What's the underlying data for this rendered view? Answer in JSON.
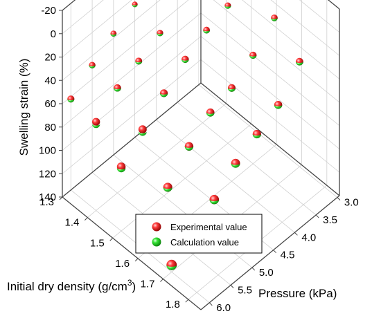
{
  "chart_data": {
    "type": "scatter",
    "dimensions": "3d",
    "axes": {
      "x": {
        "label": "Initial dry density (g/cm",
        "label_sup": "3",
        "label_close": ")",
        "ticks": [
          "1.3",
          "1.4",
          "1.5",
          "1.6",
          "1.7",
          "1.8"
        ],
        "range": [
          1.3,
          1.85
        ]
      },
      "y": {
        "label": "Pressure (kPa)",
        "ticks": [
          "3.0",
          "3.5",
          "4.0",
          "4.5",
          "5.0",
          "5.5",
          "6.0"
        ],
        "range": [
          2.95,
          6.2
        ]
      },
      "z": {
        "label": "Swelling strain (%)",
        "ticks": [
          "-20",
          "0",
          "20",
          "40",
          "60",
          "80",
          "100",
          "120",
          "140"
        ],
        "range": [
          -20,
          140
        ],
        "inverted": true
      }
    },
    "grid": true,
    "legend": {
      "position": "bottom-center",
      "entries": [
        {
          "label": "Experimental value",
          "color": "#ee1111"
        },
        {
          "label": "Calculation value",
          "color": "#22dd22"
        }
      ]
    },
    "series": [
      {
        "name": "Experimental value",
        "color": "#ee1111",
        "points": [
          [
            1.3,
            3.0,
            -2
          ],
          [
            1.3,
            3.5,
            6
          ],
          [
            1.3,
            4.0,
            18
          ],
          [
            1.3,
            4.5,
            26
          ],
          [
            1.3,
            5.0,
            36
          ],
          [
            1.3,
            5.5,
            48
          ],
          [
            1.3,
            6.0,
            62
          ],
          [
            1.4,
            3.0,
            16
          ],
          [
            1.4,
            3.5,
            19
          ],
          [
            1.4,
            4.5,
            33
          ],
          [
            1.4,
            5.0,
            42
          ],
          [
            1.4,
            5.5,
            50
          ],
          [
            1.4,
            6.0,
            64
          ],
          [
            1.5,
            3.0,
            13
          ],
          [
            1.5,
            3.5,
            22
          ],
          [
            1.5,
            4.0,
            28
          ],
          [
            1.5,
            4.5,
            38
          ],
          [
            1.5,
            5.0,
            52
          ],
          [
            1.5,
            5.5,
            68
          ],
          [
            1.5,
            6.0,
            85
          ],
          [
            1.6,
            3.0,
            30
          ],
          [
            1.6,
            3.5,
            47
          ],
          [
            1.6,
            4.0,
            60
          ],
          [
            1.6,
            4.5,
            66
          ],
          [
            1.6,
            5.0,
            80
          ],
          [
            1.6,
            5.5,
            100
          ],
          [
            1.6,
            6.0,
            114
          ],
          [
            1.7,
            3.0,
            50
          ],
          [
            1.7,
            3.5,
            72
          ],
          [
            1.7,
            4.0,
            82
          ],
          [
            1.7,
            4.5,
            92
          ],
          [
            1.7,
            5.0,
            108
          ],
          [
            1.7,
            5.5,
            122
          ],
          [
            1.7,
            6.0,
            134
          ]
        ]
      },
      {
        "name": "Calculation value",
        "color": "#22dd22",
        "points": [
          [
            1.3,
            3.0,
            -2
          ],
          [
            1.3,
            3.5,
            6
          ],
          [
            1.3,
            4.0,
            18
          ],
          [
            1.3,
            4.5,
            26
          ],
          [
            1.3,
            5.0,
            36
          ],
          [
            1.3,
            5.5,
            48
          ],
          [
            1.3,
            6.0,
            62
          ],
          [
            1.4,
            3.0,
            16
          ],
          [
            1.4,
            3.5,
            19
          ],
          [
            1.4,
            4.5,
            33
          ],
          [
            1.4,
            5.0,
            42
          ],
          [
            1.4,
            5.5,
            50
          ],
          [
            1.4,
            6.0,
            66
          ],
          [
            1.5,
            3.0,
            13
          ],
          [
            1.5,
            3.5,
            22
          ],
          [
            1.5,
            4.0,
            28
          ],
          [
            1.5,
            4.5,
            38
          ],
          [
            1.5,
            5.0,
            52
          ],
          [
            1.5,
            5.5,
            70
          ],
          [
            1.5,
            6.0,
            86
          ],
          [
            1.6,
            3.0,
            30
          ],
          [
            1.6,
            3.5,
            47
          ],
          [
            1.6,
            4.0,
            60
          ],
          [
            1.6,
            4.5,
            66
          ],
          [
            1.6,
            5.0,
            80
          ],
          [
            1.6,
            5.5,
            100
          ],
          [
            1.6,
            6.0,
            114
          ],
          [
            1.7,
            3.0,
            50
          ],
          [
            1.7,
            3.5,
            72
          ],
          [
            1.7,
            4.0,
            82
          ],
          [
            1.7,
            4.5,
            92
          ],
          [
            1.7,
            5.0,
            108
          ],
          [
            1.7,
            5.5,
            122
          ],
          [
            1.7,
            6.0,
            134
          ]
        ]
      }
    ]
  }
}
